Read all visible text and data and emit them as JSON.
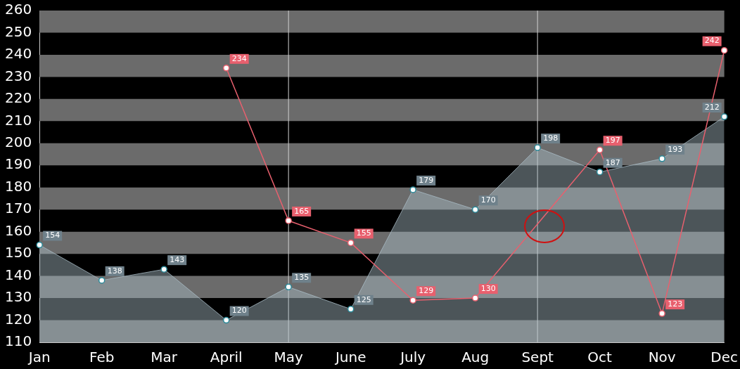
{
  "chart_data": {
    "type": "line",
    "categories": [
      "Jan",
      "Feb",
      "Mar",
      "April",
      "May",
      "June",
      "July",
      "Aug",
      "Sept",
      "Oct",
      "Nov",
      "Dec"
    ],
    "series": [
      {
        "type": "area",
        "color": "#a9bcc6",
        "values": [
          154,
          138,
          143,
          120,
          135,
          125,
          179,
          170,
          198,
          187,
          193,
          212
        ]
      },
      {
        "color": "#e8606e",
        "values": [
          null,
          null,
          null,
          234,
          165,
          155,
          129,
          130,
          null,
          197,
          123,
          242
        ]
      }
    ],
    "ylim": [
      110,
      260
    ],
    "yticks": [
      110,
      120,
      130,
      140,
      150,
      160,
      170,
      180,
      190,
      200,
      210,
      220,
      230,
      240,
      250,
      260
    ],
    "bands": [
      {
        "axis": "y",
        "from": 110,
        "to": 120,
        "color": "#6b6b6b"
      },
      {
        "axis": "y",
        "from": 130,
        "to": 140,
        "color": "#6b6b6b"
      },
      {
        "axis": "y",
        "from": 150,
        "to": 160,
        "color": "#6b6b6b"
      },
      {
        "axis": "y",
        "from": 170,
        "to": 180,
        "color": "#6b6b6b"
      },
      {
        "axis": "y",
        "from": 190,
        "to": 200,
        "color": "#6b6b6b"
      },
      {
        "axis": "y",
        "from": 210,
        "to": 220,
        "color": "#6b6b6b"
      },
      {
        "axis": "y",
        "from": 230,
        "to": 240,
        "color": "#6b6b6b"
      },
      {
        "axis": "y",
        "from": 250,
        "to": 260,
        "color": "#6b6b6b"
      }
    ],
    "ref_lines": [
      {
        "axis": "x",
        "value": "May",
        "color": "#d0d0d0"
      },
      {
        "axis": "x",
        "value": "Sept",
        "color": "#d0d0d0"
      }
    ],
    "data_labels": true,
    "marker": "circle",
    "grid": false,
    "legend": false
  }
}
